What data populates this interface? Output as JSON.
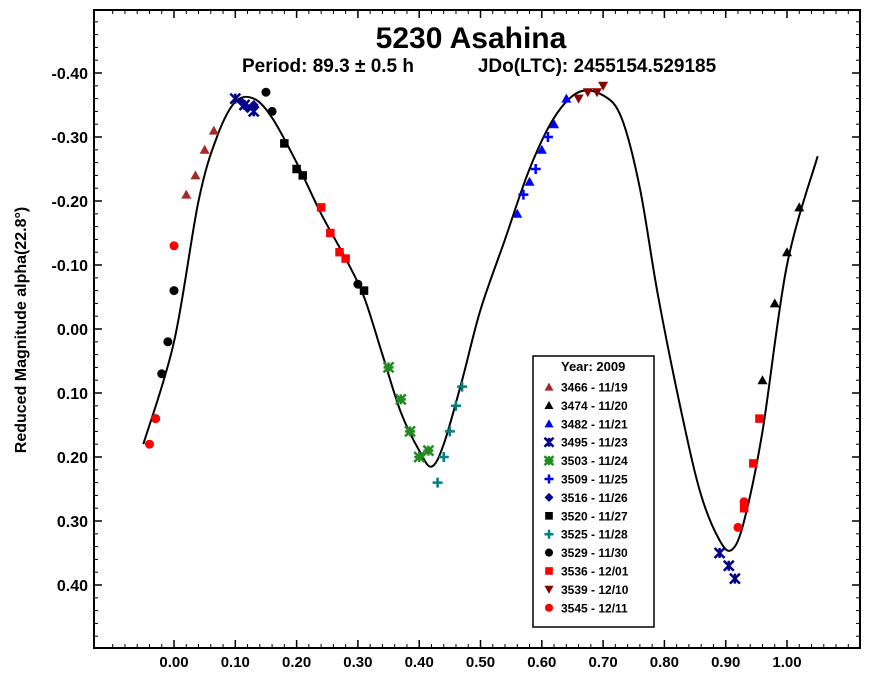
{
  "chart_data": {
    "type": "scatter",
    "title": "5230 Asahina",
    "subtitle_period": "Period: 89.3 ± 0.5 h",
    "subtitle_epoch": "JDo(LTC): 2455154.529185",
    "xlabel": "",
    "ylabel": "Reduced Magnitude alpha(22.8°)",
    "xlim": [
      -0.13,
      1.12
    ],
    "ylim": [
      -0.5,
      0.5
    ],
    "y_inverted": true,
    "x_ticks": [
      "0.00",
      "0.10",
      "0.20",
      "0.30",
      "0.40",
      "0.50",
      "0.60",
      "0.70",
      "0.80",
      "0.90",
      "1.00"
    ],
    "y_ticks": [
      "-0.40",
      "-0.30",
      "-0.20",
      "-0.10",
      "0.00",
      "0.10",
      "0.20",
      "0.30",
      "0.40"
    ],
    "grid": false,
    "legend_position": "bottom-right",
    "legend_title": "Year: 2009",
    "fit_curve": [
      [
        -0.05,
        0.18
      ],
      [
        0.0,
        0.02
      ],
      [
        0.04,
        -0.2
      ],
      [
        0.07,
        -0.3
      ],
      [
        0.1,
        -0.355
      ],
      [
        0.13,
        -0.36
      ],
      [
        0.16,
        -0.33
      ],
      [
        0.2,
        -0.26
      ],
      [
        0.24,
        -0.18
      ],
      [
        0.28,
        -0.11
      ],
      [
        0.31,
        -0.05
      ],
      [
        0.34,
        0.04
      ],
      [
        0.37,
        0.13
      ],
      [
        0.4,
        0.19
      ],
      [
        0.42,
        0.215
      ],
      [
        0.44,
        0.18
      ],
      [
        0.47,
        0.08
      ],
      [
        0.5,
        -0.03
      ],
      [
        0.54,
        -0.14
      ],
      [
        0.58,
        -0.25
      ],
      [
        0.62,
        -0.33
      ],
      [
        0.66,
        -0.37
      ],
      [
        0.7,
        -0.365
      ],
      [
        0.73,
        -0.33
      ],
      [
        0.76,
        -0.22
      ],
      [
        0.79,
        -0.05
      ],
      [
        0.83,
        0.14
      ],
      [
        0.86,
        0.26
      ],
      [
        0.89,
        0.33
      ],
      [
        0.91,
        0.345
      ],
      [
        0.93,
        0.3
      ],
      [
        0.96,
        0.16
      ],
      [
        1.0,
        -0.1
      ],
      [
        1.05,
        -0.27
      ]
    ],
    "series": [
      {
        "name": "3466 - 11/19",
        "marker": "triangle-up",
        "color": "#a52a2a",
        "x": [
          0.02,
          0.035,
          0.05,
          0.065
        ],
        "y": [
          -0.21,
          -0.24,
          -0.28,
          -0.31
        ]
      },
      {
        "name": "3474 - 11/20",
        "marker": "triangle-up",
        "color": "#000000",
        "x": [
          0.96,
          0.98,
          1.0,
          1.02
        ],
        "y": [
          0.08,
          -0.04,
          -0.12,
          -0.19
        ]
      },
      {
        "name": "3482 - 11/21",
        "marker": "triangle-up",
        "color": "#0000ff",
        "x": [
          0.56,
          0.58,
          0.6,
          0.62,
          0.64
        ],
        "y": [
          -0.18,
          -0.23,
          -0.28,
          -0.32,
          -0.36
        ]
      },
      {
        "name": "3495 - 11/23",
        "marker": "x-star",
        "color": "#00008b",
        "x": [
          0.1,
          0.115,
          0.13,
          0.89,
          0.905,
          0.915
        ],
        "y": [
          -0.36,
          -0.35,
          -0.34,
          0.35,
          0.37,
          0.39
        ]
      },
      {
        "name": "3503 - 11/24",
        "marker": "asterisk",
        "color": "#228b22",
        "x": [
          0.35,
          0.37,
          0.385,
          0.4,
          0.415
        ],
        "y": [
          0.06,
          0.11,
          0.16,
          0.2,
          0.19
        ]
      },
      {
        "name": "3509 - 11/25",
        "marker": "plus",
        "color": "#0000ff",
        "x": [
          0.57,
          0.59,
          0.61
        ],
        "y": [
          -0.21,
          -0.25,
          -0.3
        ]
      },
      {
        "name": "3516 - 11/26",
        "marker": "diamond",
        "color": "#00008b",
        "x": [
          0.11,
          0.12,
          0.13
        ],
        "y": [
          -0.355,
          -0.345,
          -0.35
        ]
      },
      {
        "name": "3520 - 11/27",
        "marker": "square",
        "color": "#000000",
        "x": [
          0.18,
          0.2,
          0.21,
          0.31
        ],
        "y": [
          -0.29,
          -0.25,
          -0.24,
          -0.06
        ]
      },
      {
        "name": "3525 - 11/28",
        "marker": "plus",
        "color": "#008080",
        "x": [
          0.43,
          0.44,
          0.45,
          0.46,
          0.47
        ],
        "y": [
          0.24,
          0.2,
          0.16,
          0.12,
          0.09
        ]
      },
      {
        "name": "3529 - 11/30",
        "marker": "circle",
        "color": "#000000",
        "x": [
          -0.03,
          -0.02,
          -0.01,
          0.0,
          0.15,
          0.16,
          0.3
        ],
        "y": [
          0.14,
          0.07,
          0.02,
          -0.06,
          -0.37,
          -0.34,
          -0.07
        ]
      },
      {
        "name": "3536 - 12/01",
        "marker": "square",
        "color": "#ff0000",
        "x": [
          0.24,
          0.255,
          0.27,
          0.28,
          0.93,
          0.945,
          0.955
        ],
        "y": [
          -0.19,
          -0.15,
          -0.12,
          -0.11,
          0.28,
          0.21,
          0.14
        ]
      },
      {
        "name": "3539 - 12/10",
        "marker": "triangle-down",
        "color": "#8b0000",
        "x": [
          0.66,
          0.675,
          0.69,
          0.7
        ],
        "y": [
          -0.36,
          -0.37,
          -0.37,
          -0.38
        ]
      },
      {
        "name": "3545 - 12/11",
        "marker": "circle",
        "color": "#ff0000",
        "x": [
          -0.04,
          -0.03,
          0.0,
          0.92,
          0.93
        ],
        "y": [
          0.18,
          0.14,
          -0.13,
          0.31,
          0.27
        ]
      }
    ]
  }
}
